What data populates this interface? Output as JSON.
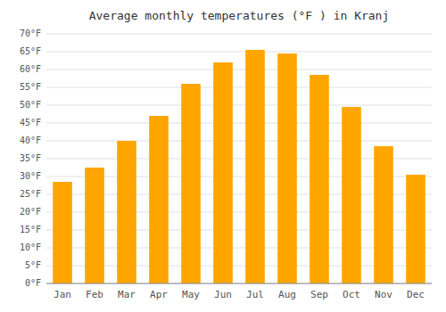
{
  "chart_data": {
    "type": "bar",
    "title": "Average monthly temperatures (°F ) in Kranj",
    "categories": [
      "Jan",
      "Feb",
      "Mar",
      "Apr",
      "May",
      "Jun",
      "Jul",
      "Aug",
      "Sep",
      "Oct",
      "Nov",
      "Dec"
    ],
    "values": [
      28.5,
      32.5,
      40.0,
      47.0,
      56.0,
      62.0,
      65.5,
      64.5,
      58.5,
      49.5,
      38.5,
      30.5
    ],
    "color": "#FFA500",
    "ylim": [
      0,
      70
    ],
    "yticks": [
      {
        "value": 0,
        "label": "0°F"
      },
      {
        "value": 5,
        "label": "5°F"
      },
      {
        "value": 10,
        "label": "10°F"
      },
      {
        "value": 15,
        "label": "15°F"
      },
      {
        "value": 20,
        "label": "20°F"
      },
      {
        "value": 25,
        "label": "25°F"
      },
      {
        "value": 30,
        "label": "30°F"
      },
      {
        "value": 35,
        "label": "35°F"
      },
      {
        "value": 40,
        "label": "40°F"
      },
      {
        "value": 45,
        "label": "45°F"
      },
      {
        "value": 50,
        "label": "50°F"
      },
      {
        "value": 55,
        "label": "55°F"
      },
      {
        "value": 60,
        "label": "60°F"
      },
      {
        "value": 65,
        "label": "65°F"
      },
      {
        "value": 70,
        "label": "70°F"
      }
    ],
    "grid": true
  }
}
